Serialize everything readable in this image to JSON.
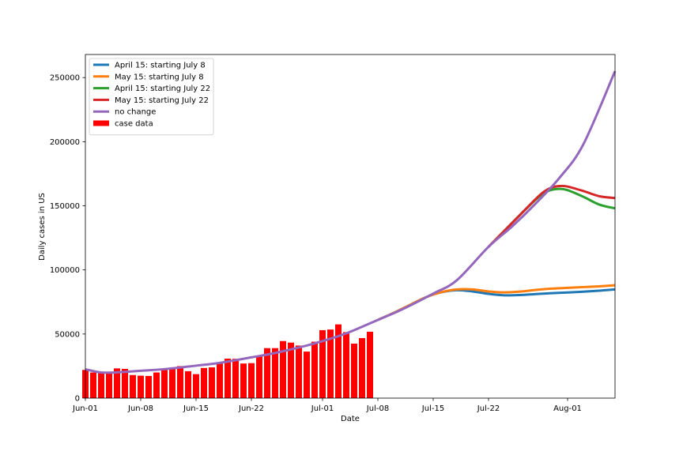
{
  "chart_data": {
    "type": "line",
    "title": "",
    "xlabel": "Date",
    "ylabel": "Daily cases in US",
    "xlim": [
      "2020-06-01",
      "2020-08-07"
    ],
    "ylim": [
      0,
      268000
    ],
    "x_ticks": [
      "Jun-01",
      "Jun-08",
      "Jun-15",
      "Jun-22",
      "Jul-01",
      "Jul-08",
      "Jul-15",
      "Jul-22",
      "Aug-01"
    ],
    "y_ticks": [
      "0",
      "50000",
      "100000",
      "150000",
      "200000",
      "250000"
    ],
    "y_tick_values": [
      0,
      50000,
      100000,
      150000,
      200000,
      250000
    ],
    "grid": false,
    "legend_position": "upper-left",
    "colors": {
      "bars": "#ff0000",
      "April 15: starting July 8": "#1f77b4",
      "May 15: starting July 8": "#ff7f0e",
      "April 15: starting July 22": "#2ca02c",
      "May 15: starting July 22": "#d62728",
      "no change": "#9467bd"
    },
    "bar_series": {
      "name": "case data",
      "dates": [
        "2020-06-01",
        "2020-06-02",
        "2020-06-03",
        "2020-06-04",
        "2020-06-05",
        "2020-06-06",
        "2020-06-07",
        "2020-06-08",
        "2020-06-09",
        "2020-06-10",
        "2020-06-11",
        "2020-06-12",
        "2020-06-13",
        "2020-06-14",
        "2020-06-15",
        "2020-06-16",
        "2020-06-17",
        "2020-06-18",
        "2020-06-19",
        "2020-06-20",
        "2020-06-21",
        "2020-06-22",
        "2020-06-23",
        "2020-06-24",
        "2020-06-25",
        "2020-06-26",
        "2020-06-27",
        "2020-06-28",
        "2020-06-29",
        "2020-06-30",
        "2020-07-01",
        "2020-07-02",
        "2020-07-03",
        "2020-07-04",
        "2020-07-05",
        "2020-07-06",
        "2020-07-07"
      ],
      "values": [
        22000,
        20000,
        20000,
        19800,
        23200,
        22800,
        18000,
        17500,
        17300,
        20000,
        22400,
        23000,
        25000,
        21000,
        18700,
        23500,
        24000,
        27500,
        30800,
        30700,
        27000,
        27300,
        33000,
        39000,
        39000,
        44500,
        43300,
        41000,
        36300,
        44000,
        53000,
        53500,
        57500,
        51500,
        42500,
        46800,
        51800
      ]
    },
    "series": [
      {
        "name": "April 15: starting July 8",
        "dates": [
          "2020-07-08",
          "2020-07-10",
          "2020-07-12",
          "2020-07-14",
          "2020-07-16",
          "2020-07-18",
          "2020-07-20",
          "2020-07-22",
          "2020-07-24",
          "2020-07-26",
          "2020-07-28",
          "2020-07-30",
          "2020-08-01",
          "2020-08-03",
          "2020-08-05",
          "2020-08-07"
        ],
        "values": [
          61000,
          66500,
          72500,
          78500,
          82500,
          84200,
          83200,
          81300,
          80200,
          80400,
          81200,
          81900,
          82400,
          83000,
          83800,
          84800
        ]
      },
      {
        "name": "May 15: starting July 8",
        "dates": [
          "2020-07-08",
          "2020-07-10",
          "2020-07-12",
          "2020-07-14",
          "2020-07-16",
          "2020-07-18",
          "2020-07-20",
          "2020-07-22",
          "2020-07-24",
          "2020-07-26",
          "2020-07-28",
          "2020-07-30",
          "2020-08-01",
          "2020-08-03",
          "2020-08-05",
          "2020-08-07"
        ],
        "values": [
          61000,
          66500,
          72500,
          78500,
          82600,
          84800,
          84800,
          83200,
          82500,
          83100,
          84400,
          85400,
          86000,
          86600,
          87200,
          88000
        ]
      },
      {
        "name": "April 15: starting July 22",
        "dates": [
          "2020-07-22",
          "2020-07-24",
          "2020-07-26",
          "2020-07-28",
          "2020-07-29",
          "2020-07-30",
          "2020-07-31",
          "2020-08-01",
          "2020-08-03",
          "2020-08-05",
          "2020-08-07"
        ],
        "values": [
          118000,
          130500,
          143000,
          155000,
          160000,
          162500,
          163200,
          162200,
          157000,
          151000,
          148000
        ]
      },
      {
        "name": "May 15: starting July 22",
        "dates": [
          "2020-07-22",
          "2020-07-24",
          "2020-07-26",
          "2020-07-28",
          "2020-07-29",
          "2020-07-30",
          "2020-07-31",
          "2020-08-01",
          "2020-08-03",
          "2020-08-05",
          "2020-08-07"
        ],
        "values": [
          118000,
          130500,
          143000,
          155500,
          161000,
          164300,
          165400,
          165000,
          161500,
          157500,
          156000
        ]
      },
      {
        "name": "no change",
        "dates": [
          "2020-06-01",
          "2020-06-03",
          "2020-06-05",
          "2020-06-08",
          "2020-06-11",
          "2020-06-15",
          "2020-06-18",
          "2020-06-22",
          "2020-06-25",
          "2020-06-29",
          "2020-07-01",
          "2020-07-04",
          "2020-07-08",
          "2020-07-11",
          "2020-07-15",
          "2020-07-18",
          "2020-07-22",
          "2020-07-25",
          "2020-07-28",
          "2020-07-31",
          "2020-08-03",
          "2020-08-07"
        ],
        "values": [
          22500,
          20000,
          20100,
          21300,
          22600,
          25300,
          27500,
          31800,
          35200,
          41000,
          44500,
          50500,
          61000,
          69000,
          81500,
          92000,
          118000,
          134000,
          152000,
          172000,
          198000,
          255000
        ]
      }
    ]
  }
}
